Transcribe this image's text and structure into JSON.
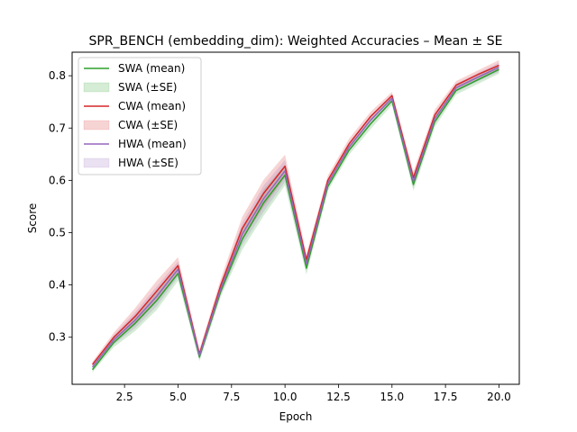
{
  "chart_data": {
    "type": "line",
    "title": "SPR_BENCH (embedding_dim): Weighted Accuracies – Mean ± SE",
    "xlabel": "Epoch",
    "ylabel": "Score",
    "xlim": [
      0.05,
      20.95
    ],
    "ylim": [
      0.21,
      0.845
    ],
    "xticks": [
      2.5,
      5.0,
      7.5,
      10.0,
      12.5,
      15.0,
      17.5,
      20.0
    ],
    "xtick_labels": [
      "2.5",
      "5.0",
      "7.5",
      "10.0",
      "12.5",
      "15.0",
      "17.5",
      "20.0"
    ],
    "yticks": [
      0.3,
      0.4,
      0.5,
      0.6,
      0.7,
      0.8
    ],
    "ytick_labels": [
      "0.3",
      "0.4",
      "0.5",
      "0.6",
      "0.7",
      "0.8"
    ],
    "grid": false,
    "legend_position": "upper-left",
    "x": [
      1,
      2,
      3,
      4,
      5,
      6,
      7,
      8,
      9,
      10,
      11,
      12,
      13,
      14,
      15,
      16,
      17,
      18,
      19,
      20
    ],
    "series": [
      {
        "name": "SWA (mean)",
        "band_name": "SWA (±SE)",
        "color": "#2ca02c",
        "mean": [
          0.238,
          0.29,
          0.327,
          0.37,
          0.422,
          0.262,
          0.388,
          0.487,
          0.557,
          0.61,
          0.432,
          0.588,
          0.658,
          0.708,
          0.752,
          0.592,
          0.712,
          0.772,
          0.792,
          0.812
        ],
        "se": [
          0.005,
          0.009,
          0.015,
          0.018,
          0.014,
          0.008,
          0.01,
          0.02,
          0.025,
          0.02,
          0.012,
          0.008,
          0.009,
          0.01,
          0.008,
          0.012,
          0.01,
          0.008,
          0.008,
          0.008
        ]
      },
      {
        "name": "CWA (mean)",
        "band_name": "CWA (±SE)",
        "color": "#d62728",
        "mean": [
          0.248,
          0.3,
          0.34,
          0.388,
          0.437,
          0.268,
          0.4,
          0.508,
          0.575,
          0.627,
          0.448,
          0.6,
          0.67,
          0.722,
          0.762,
          0.605,
          0.725,
          0.782,
          0.802,
          0.82
        ],
        "se": [
          0.005,
          0.009,
          0.016,
          0.02,
          0.016,
          0.008,
          0.012,
          0.022,
          0.026,
          0.022,
          0.012,
          0.009,
          0.01,
          0.009,
          0.007,
          0.012,
          0.01,
          0.008,
          0.008,
          0.01
        ]
      },
      {
        "name": "HWA (mean)",
        "band_name": "HWA (±SE)",
        "color": "#9467bd",
        "mean": [
          0.243,
          0.295,
          0.333,
          0.378,
          0.43,
          0.265,
          0.393,
          0.497,
          0.565,
          0.618,
          0.44,
          0.594,
          0.664,
          0.715,
          0.757,
          0.598,
          0.718,
          0.777,
          0.797,
          0.816
        ],
        "se": [
          0.005,
          0.009,
          0.015,
          0.019,
          0.015,
          0.008,
          0.011,
          0.021,
          0.025,
          0.021,
          0.012,
          0.008,
          0.009,
          0.009,
          0.008,
          0.012,
          0.01,
          0.008,
          0.008,
          0.009
        ]
      }
    ]
  }
}
